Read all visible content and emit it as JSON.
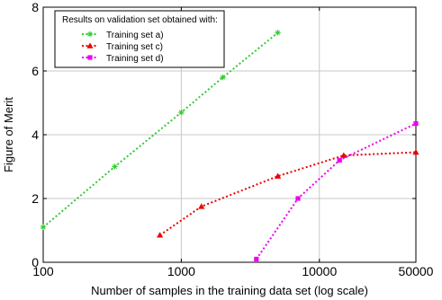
{
  "chart_data": {
    "type": "line",
    "xlabel": "Number of samples in the training data set (log scale)",
    "ylabel": "Figure of Merit",
    "x_scale": "log",
    "xlim": [
      100,
      50000
    ],
    "ylim": [
      0,
      8
    ],
    "x_ticks": [
      100,
      1000,
      10000,
      50000
    ],
    "x_tick_labels": [
      "100",
      "1000",
      "10000",
      "50000"
    ],
    "y_ticks": [
      0,
      2,
      4,
      6,
      8
    ],
    "y_tick_labels": [
      "0",
      "2",
      "4",
      "6",
      "8"
    ],
    "grid": true,
    "legend": {
      "title": "Results on validation set obtained with:",
      "position": "top-left"
    },
    "series": [
      {
        "name": "Training set a)",
        "color": "#33cc33",
        "marker": "asterisk",
        "x": [
          100,
          330,
          1000,
          2000,
          5000
        ],
        "y": [
          1.1,
          3.0,
          4.7,
          5.8,
          7.2
        ]
      },
      {
        "name": "Training set c)",
        "color": "#ee0000",
        "marker": "triangle",
        "x": [
          700,
          1400,
          5000,
          15000,
          50000
        ],
        "y": [
          0.85,
          1.75,
          2.7,
          3.35,
          3.45
        ]
      },
      {
        "name": "Training set d)",
        "color": "#ee00ee",
        "marker": "square",
        "x": [
          3500,
          7000,
          14000,
          50000
        ],
        "y": [
          0.1,
          2.0,
          3.2,
          4.35
        ]
      }
    ]
  }
}
